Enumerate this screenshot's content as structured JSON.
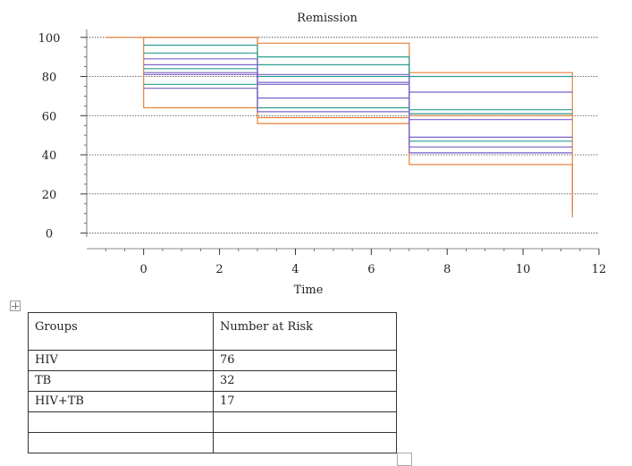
{
  "chart_data": {
    "type": "line",
    "title": "Remission",
    "xlabel": "Time",
    "ylabel": "",
    "xlim": [
      -1.5,
      12
    ],
    "ylim": [
      -2,
      104
    ],
    "xticks": [
      0,
      2,
      4,
      6,
      8,
      10,
      12
    ],
    "yticks": [
      0,
      20,
      40,
      60,
      80,
      100
    ],
    "grid": true,
    "legend": "none",
    "series": [
      {
        "color": "#e8823a",
        "points": [
          [
            -1,
            100
          ],
          [
            3,
            100
          ],
          [
            3,
            56
          ],
          [
            7,
            56
          ],
          [
            7,
            35
          ],
          [
            11.3,
            35
          ],
          [
            11.3,
            8
          ]
        ]
      },
      {
        "color": "#e8823a",
        "points": [
          [
            0,
            100
          ],
          [
            3,
            100
          ],
          [
            3,
            97
          ],
          [
            7,
            97
          ],
          [
            7,
            82
          ],
          [
            11.3,
            82
          ],
          [
            11.3,
            10
          ]
        ]
      },
      {
        "color": "#e8823a",
        "points": [
          [
            0,
            100
          ],
          [
            0,
            64
          ],
          [
            3,
            64
          ],
          [
            3,
            59
          ],
          [
            7,
            59
          ],
          [
            7,
            60
          ],
          [
            11.3,
            60
          ]
        ]
      },
      {
        "color": "#2a9d8f",
        "points": [
          [
            0,
            96
          ],
          [
            3,
            96
          ],
          [
            3,
            90
          ],
          [
            7,
            90
          ],
          [
            7,
            80
          ],
          [
            11.3,
            80
          ]
        ]
      },
      {
        "color": "#2a9d8f",
        "points": [
          [
            0,
            92
          ],
          [
            3,
            92
          ],
          [
            3,
            86
          ],
          [
            7,
            86
          ],
          [
            7,
            63
          ],
          [
            11.3,
            63
          ]
        ]
      },
      {
        "color": "#2a9d8f",
        "points": [
          [
            0,
            84
          ],
          [
            3,
            84
          ],
          [
            3,
            80
          ],
          [
            7,
            80
          ],
          [
            7,
            61
          ],
          [
            11.3,
            61
          ]
        ]
      },
      {
        "color": "#2a9d8f",
        "points": [
          [
            0,
            76
          ],
          [
            3,
            76
          ],
          [
            3,
            64
          ],
          [
            7,
            64
          ],
          [
            7,
            47
          ],
          [
            11.3,
            47
          ]
        ]
      },
      {
        "color": "#7a62c8",
        "points": [
          [
            0,
            89
          ],
          [
            3,
            89
          ],
          [
            3,
            81
          ],
          [
            7,
            81
          ],
          [
            7,
            72
          ],
          [
            11.3,
            72
          ]
        ]
      },
      {
        "color": "#7a62c8",
        "points": [
          [
            0,
            86
          ],
          [
            3,
            86
          ],
          [
            3,
            77
          ],
          [
            7,
            77
          ],
          [
            7,
            49
          ],
          [
            11.3,
            49
          ]
        ]
      },
      {
        "color": "#7a62c8",
        "points": [
          [
            0,
            82
          ],
          [
            3,
            82
          ],
          [
            3,
            69
          ],
          [
            7,
            69
          ],
          [
            7,
            44
          ],
          [
            11.3,
            44
          ]
        ]
      },
      {
        "color": "#7a62c8",
        "points": [
          [
            0,
            74
          ],
          [
            3,
            74
          ],
          [
            3,
            62
          ],
          [
            7,
            62
          ],
          [
            7,
            41
          ],
          [
            11.3,
            41
          ]
        ]
      },
      {
        "color": "#7a62c8",
        "points": [
          [
            0,
            81
          ],
          [
            3,
            81
          ],
          [
            3,
            76
          ],
          [
            7,
            76
          ],
          [
            7,
            58
          ],
          [
            11.3,
            58
          ]
        ]
      }
    ]
  },
  "table": {
    "headers": [
      "Groups",
      "Number at Risk"
    ],
    "rows": [
      [
        "HIV",
        "76"
      ],
      [
        "TB",
        "32"
      ],
      [
        "HIV+TB",
        "17"
      ],
      [
        "",
        ""
      ],
      [
        "",
        ""
      ]
    ]
  }
}
